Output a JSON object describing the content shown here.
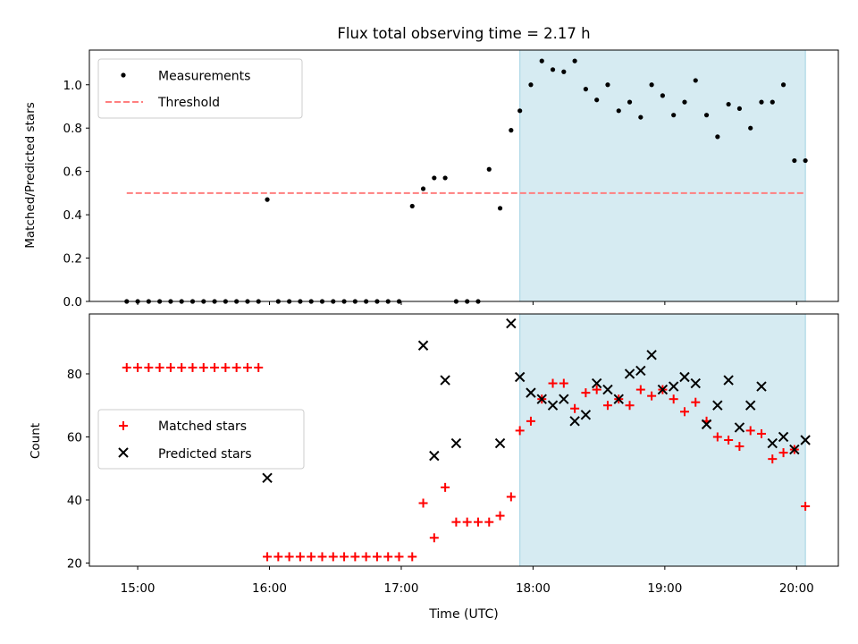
{
  "figure": {
    "title": "Flux total observing time = 2.17 h",
    "xlabel": "Time (UTC)",
    "x_ticks": [
      "15:00",
      "16:00",
      "17:00",
      "18:00",
      "19:00",
      "20:00"
    ]
  },
  "chart_data": [
    {
      "type": "scatter",
      "panel": "top",
      "ylabel": "Matched/Predicted stars",
      "xlim": [
        "14:38",
        "20:19"
      ],
      "ylim": [
        0,
        1.16
      ],
      "y_ticks": [
        "0.0",
        "0.2",
        "0.4",
        "0.6",
        "0.8",
        "1.0"
      ],
      "highlight_x_range": [
        "17:54",
        "20:04"
      ],
      "highlight_color": "#add8e6",
      "legend_position": "upper-left",
      "series": [
        {
          "name": "Measurements",
          "kind": "scatter",
          "color": "#000000",
          "x": [
            "14:55",
            "15:00",
            "15:05",
            "15:10",
            "15:15",
            "15:20",
            "15:25",
            "15:30",
            "15:35",
            "15:40",
            "15:45",
            "15:50",
            "15:55",
            "15:59",
            "16:04",
            "16:09",
            "16:14",
            "16:19",
            "16:24",
            "16:29",
            "16:34",
            "16:39",
            "16:44",
            "16:49",
            "16:54",
            "16:59",
            "17:05",
            "17:10",
            "17:15",
            "17:20",
            "17:25",
            "17:30",
            "17:35",
            "17:40",
            "17:45",
            "17:50",
            "17:54",
            "17:59",
            "18:04",
            "18:09",
            "18:14",
            "18:19",
            "18:24",
            "18:29",
            "18:34",
            "18:39",
            "18:44",
            "18:49",
            "18:54",
            "18:59",
            "19:04",
            "19:09",
            "19:14",
            "19:19",
            "19:24",
            "19:29",
            "19:34",
            "19:39",
            "19:44",
            "19:49",
            "19:54",
            "19:59",
            "20:04"
          ],
          "y": [
            0,
            0,
            0,
            0,
            0,
            0,
            0,
            0,
            0,
            0,
            0,
            0,
            0,
            0.47,
            0,
            0,
            0,
            0,
            0,
            0,
            0,
            0,
            0,
            0,
            0,
            0,
            0.44,
            0.52,
            0.57,
            0.57,
            0,
            0,
            0,
            0.61,
            0.43,
            0.79,
            0.88,
            1.0,
            1.11,
            1.07,
            1.06,
            1.11,
            0.98,
            0.93,
            1.0,
            0.88,
            0.92,
            0.85,
            1.0,
            0.95,
            0.86,
            0.92,
            1.02,
            0.86,
            0.76,
            0.91,
            0.89,
            0.8,
            0.92,
            0.92,
            1.0,
            0.65,
            0.65
          ]
        },
        {
          "name": "Threshold",
          "kind": "dashed-line",
          "color": "#ff7f7f",
          "x": [
            "14:55",
            "20:04"
          ],
          "y": [
            0.5,
            0.5
          ]
        }
      ]
    },
    {
      "type": "scatter",
      "panel": "bottom",
      "ylabel": "Count",
      "xlim": [
        "14:38",
        "20:19"
      ],
      "ylim": [
        19,
        99
      ],
      "y_ticks": [
        "20",
        "40",
        "60",
        "80"
      ],
      "highlight_x_range": [
        "17:54",
        "20:04"
      ],
      "highlight_color": "#add8e6",
      "legend_position": "center-left",
      "series": [
        {
          "name": "Matched stars",
          "marker": "plus",
          "color": "#ff0000",
          "x": [
            "14:55",
            "15:00",
            "15:05",
            "15:10",
            "15:15",
            "15:20",
            "15:25",
            "15:30",
            "15:35",
            "15:40",
            "15:45",
            "15:50",
            "15:55",
            "15:59",
            "16:04",
            "16:09",
            "16:14",
            "16:19",
            "16:24",
            "16:29",
            "16:34",
            "16:39",
            "16:44",
            "16:49",
            "16:54",
            "16:59",
            "17:05",
            "17:10",
            "17:15",
            "17:20",
            "17:25",
            "17:30",
            "17:35",
            "17:40",
            "17:45",
            "17:50",
            "17:54",
            "17:59",
            "18:04",
            "18:09",
            "18:14",
            "18:19",
            "18:24",
            "18:29",
            "18:34",
            "18:39",
            "18:44",
            "18:49",
            "18:54",
            "18:59",
            "19:04",
            "19:09",
            "19:14",
            "19:19",
            "19:24",
            "19:29",
            "19:34",
            "19:39",
            "19:44",
            "19:49",
            "19:54",
            "19:59",
            "20:04"
          ],
          "y": [
            82,
            82,
            82,
            82,
            82,
            82,
            82,
            82,
            82,
            82,
            82,
            82,
            82,
            22,
            22,
            22,
            22,
            22,
            22,
            22,
            22,
            22,
            22,
            22,
            22,
            22,
            22,
            39,
            28,
            44,
            33,
            33,
            33,
            33,
            35,
            41,
            62,
            65,
            72,
            77,
            77,
            69,
            74,
            75,
            70,
            72,
            70,
            75,
            73,
            75,
            72,
            68,
            71,
            65,
            60,
            59,
            57,
            62,
            61,
            53,
            55,
            56,
            38
          ]
        },
        {
          "name": "Predicted stars",
          "marker": "x",
          "color": "#000000",
          "x": [
            "15:59",
            "17:10",
            "17:15",
            "17:20",
            "17:25",
            "17:45",
            "17:50",
            "17:54",
            "17:59",
            "18:04",
            "18:09",
            "18:14",
            "18:19",
            "18:24",
            "18:29",
            "18:34",
            "18:39",
            "18:44",
            "18:49",
            "18:54",
            "18:59",
            "19:04",
            "19:09",
            "19:14",
            "19:19",
            "19:24",
            "19:29",
            "19:34",
            "19:39",
            "19:44",
            "19:49",
            "19:54",
            "19:59",
            "20:04"
          ],
          "y": [
            47,
            89,
            54,
            78,
            58,
            58,
            96,
            79,
            74,
            72,
            70,
            72,
            65,
            67,
            77,
            75,
            72,
            80,
            81,
            86,
            75,
            76,
            79,
            77,
            64,
            70,
            78,
            63,
            70,
            76,
            58,
            60,
            56,
            59
          ]
        }
      ]
    }
  ]
}
